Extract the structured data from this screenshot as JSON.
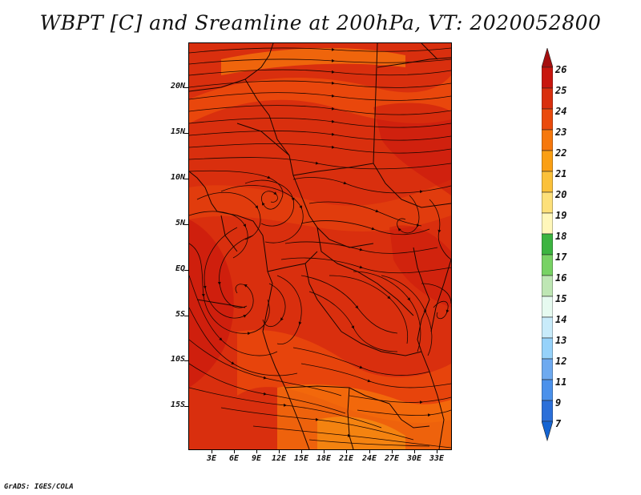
{
  "title": "WBPT [C] and Sreamline at 200hPa, VT: 2020052800",
  "lat_labels": [
    "20N",
    "15N",
    "10N",
    "5N",
    "EQ",
    "5S",
    "10S",
    "15S"
  ],
  "lon_labels": [
    "3E",
    "6E",
    "9E",
    "12E",
    "15E",
    "18E",
    "21E",
    "24E",
    "27E",
    "30E",
    "33E"
  ],
  "colorbar": {
    "levels": [
      "26",
      "25",
      "24",
      "23",
      "22",
      "21",
      "20",
      "19",
      "18",
      "17",
      "16",
      "15",
      "14",
      "13",
      "12",
      "11",
      "9",
      "7"
    ],
    "colors": [
      "#a50f0f",
      "#c8160e",
      "#d92f0e",
      "#ea4a0c",
      "#f6780c",
      "#fa9f14",
      "#fbc13a",
      "#fde07a",
      "#fff7ba",
      "#3cb440",
      "#78d264",
      "#bee6b4",
      "#e6faf0",
      "#c8ebfa",
      "#96d2fa",
      "#6eaaf0",
      "#4b91eb",
      "#2b6fd9",
      "#1464d2"
    ]
  },
  "credit": "GrADS: IGES/COLA"
}
